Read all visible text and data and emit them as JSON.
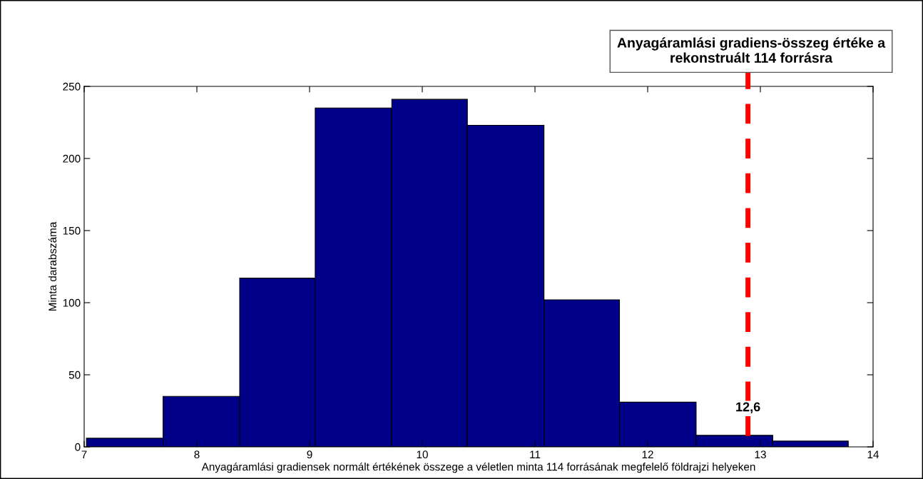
{
  "chart_data": {
    "type": "histogram",
    "xlabel": "Anyagáramlási gradiensek normált értékének összege a véletlen minta 114 forrásának megfelelő földrajzi helyeken",
    "ylabel": "Minta darabszáma",
    "bins": [
      7.02,
      7.7,
      8.38,
      9.05,
      9.73,
      10.4,
      11.08,
      11.75,
      12.43,
      13.11,
      13.78
    ],
    "values": [
      6,
      35,
      117,
      235,
      241,
      223,
      102,
      31,
      8,
      4
    ],
    "color": "#000088",
    "xlim": [
      7,
      14
    ],
    "xticks": [
      7,
      8,
      9,
      10,
      11,
      12,
      13,
      14
    ],
    "ylim": [
      0,
      250
    ],
    "yticks": [
      0,
      50,
      100,
      150,
      200,
      250
    ],
    "grid": false,
    "ref_lines": [
      {
        "axis": "x",
        "value": 12.89,
        "color": "#ff0000",
        "line_style": "dashed"
      }
    ],
    "annotations": [
      "Anyagáramlási gradiens-összeg értéke a rekonstruált 114 forrásra",
      {
        "text": "12,6",
        "x": 12.89,
        "y": 27
      }
    ]
  }
}
